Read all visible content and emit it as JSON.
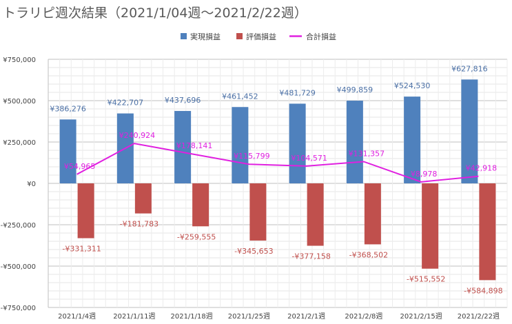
{
  "chart_data": {
    "type": "bar",
    "title": "トラリピ週次結果（2021/1/04週〜2021/2/22週）",
    "categories": [
      "2021/1/4週",
      "2021/1/11週",
      "2021/1/18週",
      "2021/1/25週",
      "2021/2/1週",
      "2021/2/8週",
      "2021/2/15週",
      "2021/2/22週"
    ],
    "ylim": [
      -750000,
      750000
    ],
    "yticks": [
      750000,
      500000,
      250000,
      0,
      -250000,
      -500000,
      -750000
    ],
    "ytick_labels": [
      "¥750,000",
      "¥500,000",
      "¥250,000",
      "¥0",
      "-¥250,000",
      "-¥500,000",
      "-¥750,000"
    ],
    "grid": true,
    "legend_position": "top",
    "series": [
      {
        "name": "実現損益",
        "kind": "bar",
        "color": "#4f81bd",
        "values": [
          386276,
          422707,
          437696,
          461452,
          481729,
          499859,
          524530,
          627816
        ],
        "labels": [
          "¥386,276",
          "¥422,707",
          "¥437,696",
          "¥461,452",
          "¥481,729",
          "¥499,859",
          "¥524,530",
          "¥627,816"
        ]
      },
      {
        "name": "評価損益",
        "kind": "bar",
        "color": "#c0504d",
        "values": [
          -331311,
          -181783,
          -259555,
          -345653,
          -377158,
          -368502,
          -515552,
          -584898
        ],
        "labels": [
          "-¥331,311",
          "-¥181,783",
          "-¥259,555",
          "-¥345,653",
          "-¥377,158",
          "-¥368,502",
          "-¥515,552",
          "-¥584,898"
        ]
      },
      {
        "name": "合計損益",
        "kind": "line",
        "color": "#e020e0",
        "values": [
          54965,
          240924,
          178141,
          115799,
          104571,
          131357,
          8978,
          42918
        ],
        "labels": [
          "¥54,965",
          "¥240,924",
          "¥178,141",
          "¥115,799",
          "¥104,571",
          "¥131,357",
          "¥8,978",
          "¥42,918"
        ]
      }
    ]
  }
}
